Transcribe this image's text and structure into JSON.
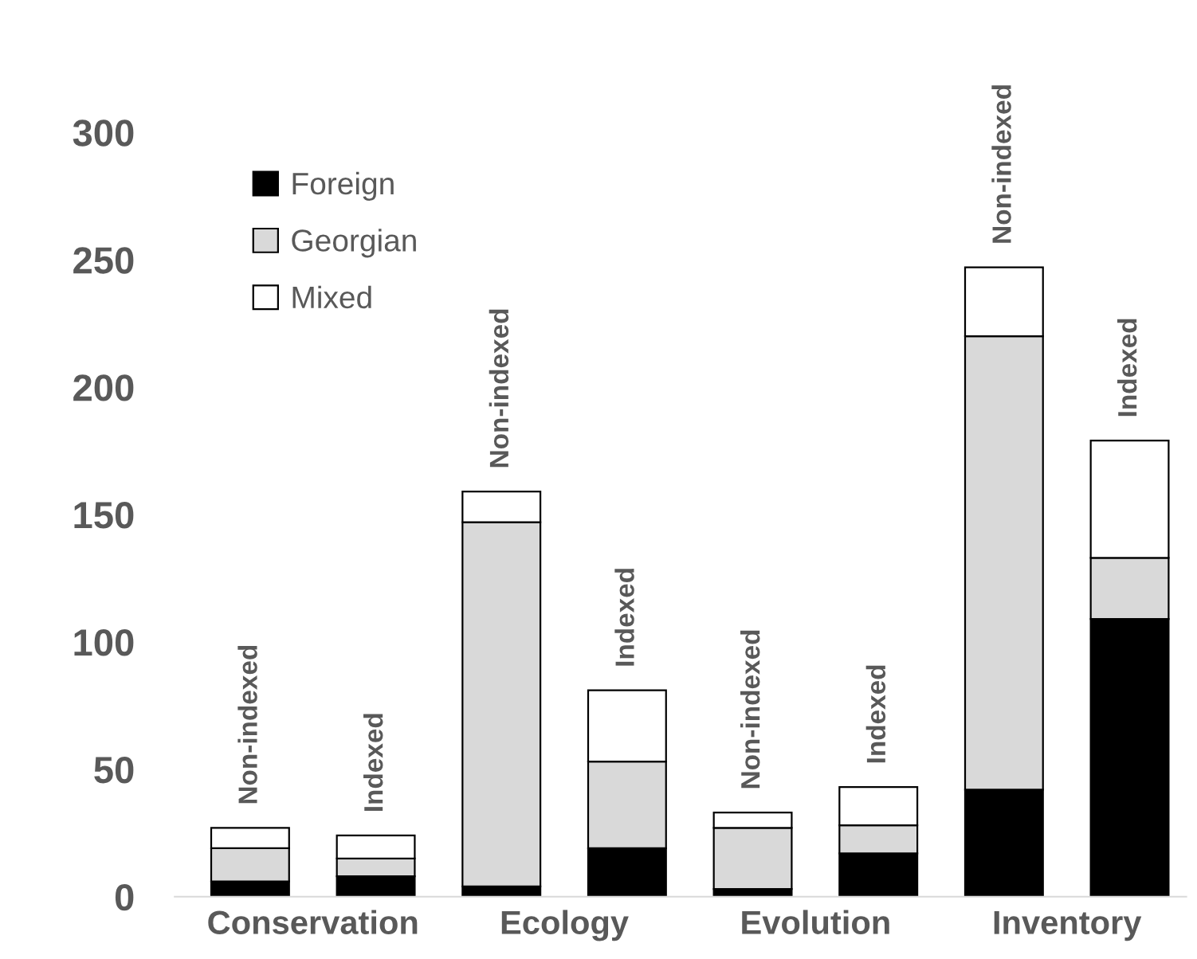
{
  "chart_data": {
    "type": "bar",
    "stacked": true,
    "categories": [
      "Non-indexed",
      "Indexed",
      "Non-indexed",
      "Indexed",
      "Non-indexed",
      "Indexed",
      "Non-indexed",
      "Indexed"
    ],
    "series": [
      {
        "name": "Foreign",
        "color": "#000000",
        "values": [
          6,
          8,
          4,
          19,
          3,
          17,
          42,
          109
        ]
      },
      {
        "name": "Georgian",
        "color": "#d9d9d9",
        "values": [
          13,
          7,
          143,
          34,
          24,
          11,
          178,
          24
        ]
      },
      {
        "name": "Mixed",
        "color": "#ffffff",
        "values": [
          8,
          9,
          12,
          28,
          6,
          15,
          27,
          46
        ]
      }
    ],
    "annotations": [
      "Conservation",
      "Ecology",
      "Evolution",
      "Inventory"
    ],
    "ylim": [
      0,
      300
    ],
    "yticks": [
      0,
      50,
      100,
      150,
      200,
      250,
      300
    ],
    "grid": false,
    "legend": "top left"
  }
}
